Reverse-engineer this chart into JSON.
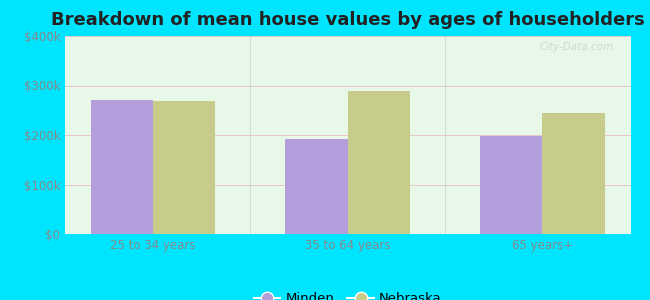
{
  "title": "Breakdown of mean house values by ages of householders",
  "categories": [
    "25 to 34 years",
    "35 to 64 years",
    "65 years+"
  ],
  "minden_values": [
    270000,
    192000,
    198000
  ],
  "nebraska_values": [
    268000,
    288000,
    245000
  ],
  "minden_color": "#b39ddb",
  "nebraska_color": "#c8cc8a",
  "ylim": [
    0,
    400000
  ],
  "yticks": [
    0,
    100000,
    200000,
    300000,
    400000
  ],
  "ytick_labels": [
    "$0",
    "$100k",
    "$200k",
    "$300k",
    "$400k"
  ],
  "legend_labels": [
    "Minden",
    "Nebraska"
  ],
  "background_outer": "#00e5ff",
  "bar_width": 0.32,
  "title_fontsize": 13,
  "tick_fontsize": 8.5,
  "legend_fontsize": 9.5,
  "watermark": "City-Data.com"
}
